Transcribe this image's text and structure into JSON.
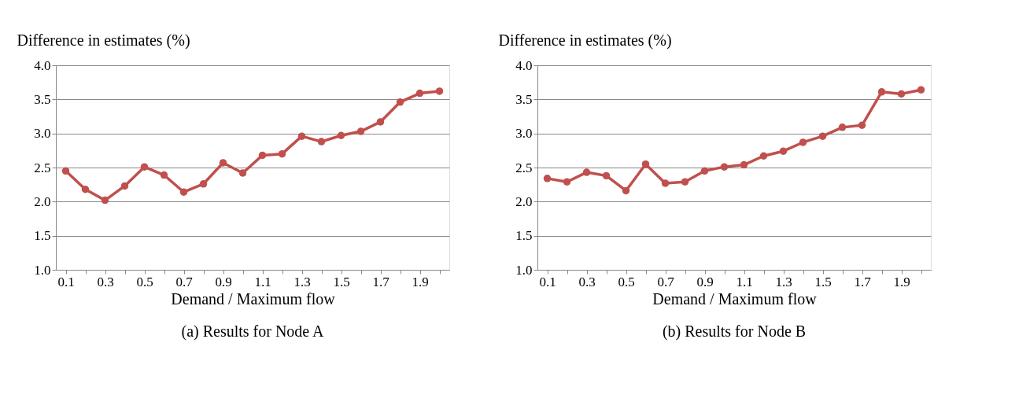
{
  "chart_data": [
    {
      "type": "line",
      "title": "(a) Results for Node A",
      "xlabel": "Demand / Maximum flow",
      "ylabel": "Difference in estimates (%)",
      "categories": [
        "0.1",
        null,
        "0.3",
        null,
        "0.5",
        null,
        "0.7",
        null,
        "0.9",
        null,
        "1.1",
        null,
        "1.3",
        null,
        "1.5",
        null,
        "1.7",
        null,
        "1.9",
        null
      ],
      "series": [
        {
          "color": "#c0504d",
          "values": [
            2.45,
            2.18,
            2.02,
            2.23,
            2.51,
            2.39,
            2.14,
            2.26,
            2.57,
            2.42,
            2.68,
            2.7,
            2.96,
            2.88,
            2.97,
            3.03,
            3.17,
            3.46,
            3.59,
            3.62
          ]
        }
      ],
      "ylim": [
        1.0,
        4.0
      ],
      "yticks": [
        {
          "value": 1,
          "label": "1.0"
        },
        {
          "value": 1.5,
          "label": "1.5"
        },
        {
          "value": 2,
          "label": "2.0"
        },
        {
          "value": 2.5,
          "label": "2.5"
        },
        {
          "value": 3,
          "label": "3.0"
        },
        {
          "value": 3.5,
          "label": "3.5"
        },
        {
          "value": 4,
          "label": "4.0"
        }
      ],
      "grid": "y",
      "marker": "circle",
      "line_style": "solid"
    },
    {
      "type": "line",
      "title": "(b) Results for Node B",
      "xlabel": "Demand / Maximum flow",
      "ylabel": "Difference in estimates (%)",
      "categories": [
        "0.1",
        null,
        "0.3",
        null,
        "0.5",
        null,
        "0.7",
        null,
        "0.9",
        null,
        "1.1",
        null,
        "1.3",
        null,
        "1.5",
        null,
        "1.7",
        null,
        "1.9",
        null
      ],
      "series": [
        {
          "color": "#c0504d",
          "values": [
            2.34,
            2.29,
            2.43,
            2.38,
            2.16,
            2.55,
            2.27,
            2.29,
            2.45,
            2.51,
            2.54,
            2.67,
            2.74,
            2.87,
            2.96,
            3.09,
            3.12,
            3.61,
            3.58,
            3.64
          ]
        }
      ],
      "ylim": [
        1.0,
        4.0
      ],
      "yticks": [
        {
          "value": 1,
          "label": "1.0"
        },
        {
          "value": 1.5,
          "label": "1.5"
        },
        {
          "value": 2,
          "label": "2.0"
        },
        {
          "value": 2.5,
          "label": "2.5"
        },
        {
          "value": 3,
          "label": "3.0"
        },
        {
          "value": 3.5,
          "label": "3.5"
        },
        {
          "value": 4,
          "label": "4.0"
        }
      ],
      "grid": "y",
      "marker": "circle",
      "line_style": "solid"
    }
  ]
}
